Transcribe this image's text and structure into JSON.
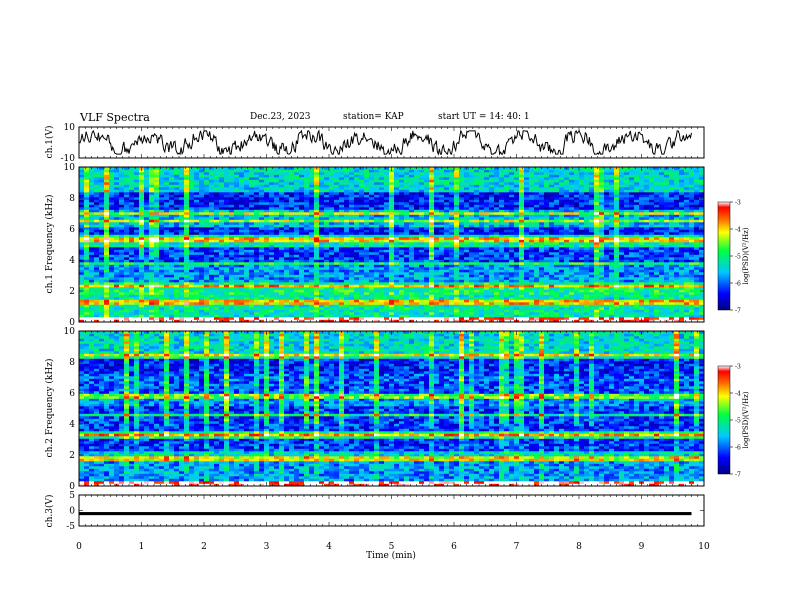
{
  "header": {
    "title": "VLF Spectra",
    "date": "Dec.23, 2023",
    "station": "station= KAP",
    "start": "start  UT =  14: 40: 1"
  },
  "chart_data": [
    {
      "type": "line",
      "ylabel": "ch.1(V)",
      "ylim": [
        -10,
        10
      ],
      "yticks": [
        "10",
        "-10"
      ],
      "xlim": [
        0,
        10
      ],
      "series_description": "noisy waveform oscillating around 0 between about -7 and 7 V, ends at ~9.8 min"
    },
    {
      "type": "heatmap",
      "ylabel": "ch.1 Frequency (kHz)",
      "ylim": [
        0,
        10
      ],
      "yticks": [
        "0",
        "2",
        "4",
        "6",
        "8",
        "10"
      ],
      "xlim": [
        0,
        10
      ],
      "colorbar": {
        "label": "log(PSD)(V²/Hz)",
        "ticks": [
          "-3",
          "-4",
          "-5",
          "-6",
          "-7"
        ],
        "range": [
          -7,
          -3
        ]
      },
      "bands_khz": [
        {
          "from": 0,
          "to": 0.3,
          "level": -4.2
        },
        {
          "from": 0.3,
          "to": 1.8,
          "level": -5.2
        },
        {
          "from": 1.8,
          "to": 2.6,
          "level": -5.0
        },
        {
          "from": 2.6,
          "to": 3.7,
          "level": -5.8
        },
        {
          "from": 3.7,
          "to": 4.8,
          "level": -6.2
        },
        {
          "from": 4.8,
          "to": 5.6,
          "level": -5.2
        },
        {
          "from": 5.6,
          "to": 6.2,
          "level": -6.3
        },
        {
          "from": 6.2,
          "to": 7.2,
          "level": -5.6
        },
        {
          "from": 7.2,
          "to": 8.4,
          "level": -6.3
        },
        {
          "from": 8.4,
          "to": 10,
          "level": -5.4
        }
      ],
      "lines_khz": [
        0.2,
        1.3,
        2.3,
        3.8,
        5.3,
        6.5,
        7.0
      ]
    },
    {
      "type": "heatmap",
      "ylabel": "ch.2 Frequency (kHz)",
      "ylim": [
        0,
        10
      ],
      "yticks": [
        "0",
        "2",
        "4",
        "6",
        "8",
        "10"
      ],
      "xlim": [
        0,
        10
      ],
      "colorbar": {
        "label": "log(PSD)(V²/Hz)",
        "ticks": [
          "-3",
          "-4",
          "-5",
          "-6",
          "-7"
        ],
        "range": [
          -7,
          -3
        ]
      },
      "bands_khz": [
        {
          "from": 0,
          "to": 0.3,
          "level": -4.2
        },
        {
          "from": 0.3,
          "to": 1.6,
          "level": -5.8
        },
        {
          "from": 1.6,
          "to": 2.2,
          "level": -5.4
        },
        {
          "from": 2.2,
          "to": 3.1,
          "level": -6.2
        },
        {
          "from": 3.1,
          "to": 3.6,
          "level": -5.0
        },
        {
          "from": 3.6,
          "to": 5.2,
          "level": -6.2
        },
        {
          "from": 5.2,
          "to": 6.0,
          "level": -5.8
        },
        {
          "from": 6.0,
          "to": 7.3,
          "level": -6.1
        },
        {
          "from": 7.3,
          "to": 8.4,
          "level": -6.3
        },
        {
          "from": 8.4,
          "to": 10,
          "level": -5.4
        }
      ],
      "lines_khz": [
        0.2,
        1.8,
        3.3,
        4.6,
        5.8,
        8.4
      ]
    },
    {
      "type": "line",
      "ylabel": "ch.3(V)",
      "ylim": [
        -5,
        5
      ],
      "yticks": [
        "5",
        "0",
        "-5"
      ],
      "xlim": [
        0,
        10
      ],
      "xlabel": "Time (min)",
      "xticks": [
        "0",
        "1",
        "2",
        "3",
        "4",
        "5",
        "6",
        "7",
        "8",
        "9",
        "10"
      ],
      "series_description": "flat thick band at about -1 V from 0 to ~9.8 min"
    }
  ]
}
